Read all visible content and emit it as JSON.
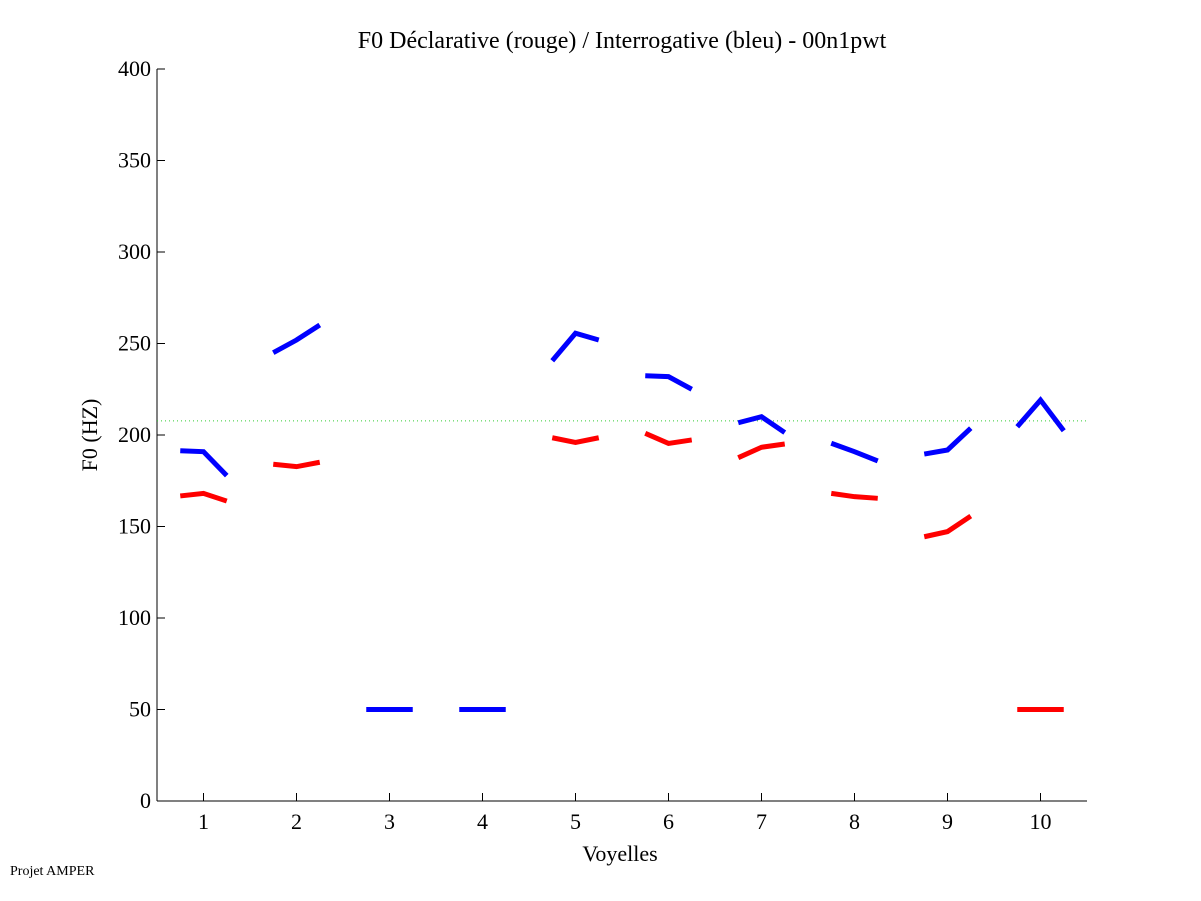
{
  "footer": "Projet AMPER",
  "chart_data": {
    "type": "line",
    "title": "F0 Déclarative (rouge) / Interrogative (bleu) - 00n1pwt",
    "xlabel": "Voyelles",
    "ylabel": "F0 (HZ)",
    "xlim": [
      0.5,
      10.5
    ],
    "ylim": [
      0,
      400
    ],
    "xticks": [
      1,
      2,
      3,
      4,
      5,
      6,
      7,
      8,
      9,
      10
    ],
    "yticks": [
      0,
      50,
      100,
      150,
      200,
      250,
      300,
      350,
      400
    ],
    "reference_line": {
      "value": 207.7,
      "color": "#33cc33",
      "style": "dotted"
    },
    "point_offsets": [
      -0.25,
      0,
      0.25
    ],
    "series": [
      {
        "name": "Déclarative (rouge)",
        "color": "#ff0000",
        "segments": [
          {
            "vowel": 1,
            "values": [
              166.7,
              168.1,
              163.9
            ]
          },
          {
            "vowel": 2,
            "values": [
              184.0,
              182.7,
              185.1
            ]
          },
          {
            "vowel": 5,
            "values": [
              198.5,
              195.9,
              198.5
            ]
          },
          {
            "vowel": 6,
            "values": [
              200.9,
              195.4,
              197.3
            ]
          },
          {
            "vowel": 7,
            "values": [
              187.6,
              193.3,
              195.1
            ]
          },
          {
            "vowel": 8,
            "values": [
              168.1,
              166.3,
              165.4
            ]
          },
          {
            "vowel": 9,
            "values": [
              144.4,
              147.2,
              155.7
            ]
          },
          {
            "vowel": 10,
            "values": [
              50,
              50,
              50
            ]
          }
        ]
      },
      {
        "name": "Interrogative (bleu)",
        "color": "#0000ff",
        "segments": [
          {
            "vowel": 1,
            "values": [
              191.4,
              190.9,
              177.8
            ]
          },
          {
            "vowel": 2,
            "values": [
              245.0,
              251.9,
              260.1
            ]
          },
          {
            "vowel": 3,
            "values": [
              50,
              50,
              50
            ]
          },
          {
            "vowel": 4,
            "values": [
              50,
              50,
              50
            ]
          },
          {
            "vowel": 5,
            "values": [
              240.6,
              255.6,
              251.9
            ]
          },
          {
            "vowel": 6,
            "values": [
              232.4,
              231.9,
              225.0
            ]
          },
          {
            "vowel": 7,
            "values": [
              206.7,
              210.0,
              201.3
            ]
          },
          {
            "vowel": 8,
            "values": [
              195.5,
              190.9,
              185.8
            ]
          },
          {
            "vowel": 9,
            "values": [
              189.6,
              191.8,
              203.7
            ]
          },
          {
            "vowel": 10,
            "values": [
              204.5,
              219.1,
              202.3
            ]
          }
        ]
      }
    ]
  }
}
